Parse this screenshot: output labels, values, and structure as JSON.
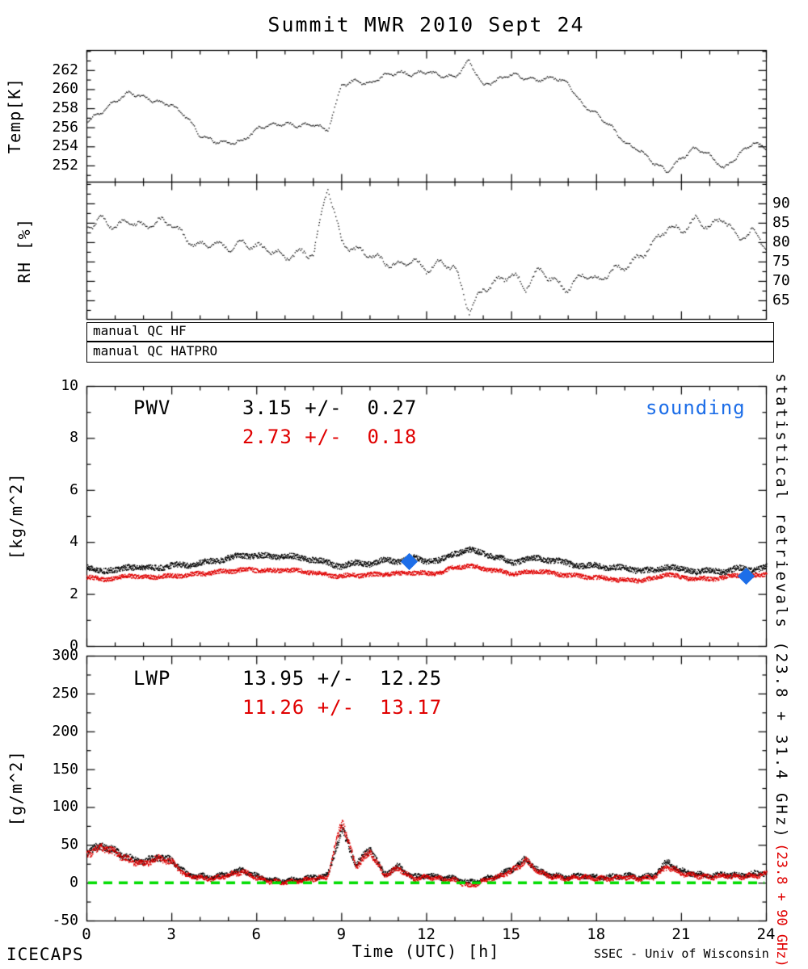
{
  "title": "Summit MWR 2010 Sept 24",
  "colors": {
    "black": "#000000",
    "red": "#e00000",
    "blue": "#1d6ee8",
    "green": "#00dd00"
  },
  "qc": {
    "rows": [
      {
        "label": "manual QC HF"
      },
      {
        "label": "manual QC HATPRO"
      }
    ]
  },
  "x_axis": {
    "label": "Time (UTC) [h]",
    "ticks": [
      "0",
      "3",
      "6",
      "9",
      "12",
      "15",
      "18",
      "21",
      "24"
    ]
  },
  "footer": {
    "left": "ICECAPS",
    "right": "SSEC - Univ of Wisconsin"
  },
  "right_label": {
    "black": "statistical retrievals (23.8 + 31.4 GHz)",
    "red": "(23.8 + 90 GHz)"
  },
  "panels": {
    "temp": {
      "ylabel": "Temp[K]",
      "yticks": [
        "262",
        "260",
        "258",
        "256",
        "254",
        "252"
      ]
    },
    "rh": {
      "ylabel": "RH [%]",
      "yticks": [
        "90",
        "85",
        "80",
        "75",
        "70",
        "65"
      ]
    },
    "pwv": {
      "ylabel": "[kg/m^2]",
      "yticks": [
        "10",
        "8",
        "6",
        "4",
        "2",
        "0"
      ],
      "label": "PWV",
      "stats_black": "3.15 +/-  0.27",
      "stats_red": "2.73 +/-  0.18",
      "legend_sounding": "sounding"
    },
    "lwp": {
      "ylabel": "[g/m^2]",
      "yticks": [
        "300",
        "250",
        "200",
        "150",
        "100",
        "50",
        "0",
        "-50"
      ],
      "label": "LWP",
      "stats_black": "13.95 +/-  12.25",
      "stats_red": "11.26 +/-  13.17"
    }
  },
  "chart_data": [
    {
      "type": "line",
      "panel": "temp",
      "title": "Summit MWR 2010 Sept 24",
      "ylabel": "Temp[K]",
      "ylim": [
        250.3,
        264.1
      ],
      "yticks": [
        252,
        254,
        256,
        258,
        260,
        262
      ],
      "xlim": [
        0,
        24
      ],
      "xticks": [
        0,
        3,
        6,
        9,
        12,
        15,
        18,
        21,
        24
      ],
      "x_start": 0,
      "x_step": 0.5,
      "x_unit": "hours UTC",
      "style": "dotted-black",
      "values": [
        256.7,
        257.6,
        258.8,
        259.7,
        259.2,
        258.7,
        258.4,
        257.2,
        255.2,
        254.6,
        254.4,
        254.6,
        255.9,
        256.3,
        256.4,
        256.2,
        256.4,
        255.7,
        260.5,
        260.9,
        260.6,
        261.5,
        261.8,
        261.6,
        261.9,
        261.5,
        261.3,
        263.0,
        260.4,
        261.0,
        261.6,
        261.2,
        261.0,
        261.3,
        260.6,
        258.4,
        257.4,
        256.2,
        254.4,
        253.7,
        252.4,
        251.4,
        252.8,
        253.9,
        253.1,
        251.7,
        253.1,
        254.4,
        253.9
      ]
    },
    {
      "type": "line",
      "panel": "rh",
      "ylabel": "RH [%]",
      "ylim": [
        60.2,
        95.6
      ],
      "yticks": [
        65,
        70,
        75,
        80,
        85,
        90
      ],
      "yticks_side": "right",
      "xlim": [
        0,
        24
      ],
      "x_start": 0,
      "x_step": 0.5,
      "x_unit": "hours UTC",
      "style": "dotted-black",
      "values": [
        84,
        86,
        84,
        85.5,
        84,
        85.5,
        85,
        81,
        79,
        80,
        78.5,
        80,
        79,
        78,
        76,
        77.5,
        77,
        95,
        80,
        78,
        77,
        75,
        74,
        75.5,
        73,
        75,
        73.5,
        62.5,
        68,
        70,
        72,
        68.5,
        73,
        70,
        68,
        72,
        70,
        72.5,
        74,
        76,
        80,
        84,
        83,
        86,
        84,
        86.5,
        81,
        83,
        79
      ]
    },
    {
      "type": "line",
      "panel": "pwv",
      "ylabel": "[kg/m^2]",
      "ylim": [
        0,
        10
      ],
      "yticks": [
        0,
        2,
        4,
        6,
        8,
        10
      ],
      "xlim": [
        0,
        24
      ],
      "x_start": 0,
      "x_step": 0.5,
      "x_unit": "hours UTC",
      "stats": {
        "black": {
          "mean": 3.15,
          "std": 0.27
        },
        "red": {
          "mean": 2.73,
          "std": 0.18
        }
      },
      "series": [
        {
          "name": "PWV statistical retrieval (23.8 + 31.4 GHz)",
          "color": "#000000",
          "values": [
            3.0,
            2.95,
            2.9,
            3.1,
            3.0,
            3.05,
            3.1,
            3.15,
            3.2,
            3.3,
            3.4,
            3.5,
            3.5,
            3.45,
            3.5,
            3.4,
            3.35,
            3.2,
            3.1,
            3.2,
            3.2,
            3.3,
            3.3,
            3.4,
            3.3,
            3.3,
            3.6,
            3.7,
            3.6,
            3.4,
            3.25,
            3.35,
            3.4,
            3.3,
            3.2,
            3.1,
            3.1,
            3.05,
            3.0,
            2.95,
            2.9,
            3.1,
            2.95,
            2.9,
            2.9,
            2.9,
            3.0,
            2.95,
            3.05
          ]
        },
        {
          "name": "PWV statistical retrieval (23.8 + 90 GHz)",
          "color": "#e00000",
          "values": [
            2.65,
            2.6,
            2.6,
            2.75,
            2.65,
            2.7,
            2.7,
            2.75,
            2.8,
            2.85,
            2.9,
            2.95,
            2.95,
            2.9,
            2.95,
            2.9,
            2.85,
            2.75,
            2.7,
            2.75,
            2.75,
            2.8,
            2.8,
            2.85,
            2.8,
            2.85,
            3.05,
            3.1,
            3.0,
            2.9,
            2.8,
            2.85,
            2.9,
            2.8,
            2.75,
            2.7,
            2.65,
            2.6,
            2.55,
            2.55,
            2.6,
            2.8,
            2.65,
            2.6,
            2.6,
            2.65,
            2.75,
            2.7,
            2.8
          ]
        }
      ],
      "markers": {
        "name": "sounding",
        "shape": "diamond",
        "color": "#1d6ee8",
        "points": [
          [
            11.4,
            3.25
          ],
          [
            23.3,
            2.7
          ]
        ]
      }
    },
    {
      "type": "line",
      "panel": "lwp",
      "ylabel": "[g/m^2]",
      "ylim": [
        -50,
        300
      ],
      "yticks": [
        -50,
        0,
        50,
        100,
        150,
        200,
        250,
        300
      ],
      "xlabel": "Time (UTC) [h]",
      "xlim": [
        0,
        24
      ],
      "xticks": [
        0,
        3,
        6,
        9,
        12,
        15,
        18,
        21,
        24
      ],
      "x_start": 0,
      "x_step": 0.5,
      "x_unit": "hours UTC",
      "stats": {
        "black": {
          "mean": 13.95,
          "std": 12.25
        },
        "red": {
          "mean": 11.26,
          "std": 13.17
        }
      },
      "zero_line": {
        "value": 0,
        "color": "#00dd00",
        "style": "dashed"
      },
      "series": [
        {
          "name": "LWP statistical retrieval (23.8 + 31.4 GHz)",
          "color": "#000000",
          "values": [
            40,
            50,
            42,
            33,
            28,
            35,
            30,
            12,
            9,
            8,
            13,
            17,
            9,
            4,
            3,
            5,
            8,
            10,
            72,
            25,
            45,
            12,
            22,
            8,
            10,
            8,
            6,
            1,
            5,
            10,
            18,
            32,
            15,
            10,
            8,
            10,
            8,
            8,
            10,
            8,
            10,
            28,
            16,
            12,
            10,
            12,
            10,
            12,
            14
          ]
        },
        {
          "name": "LWP statistical retrieval (23.8 + 90 GHz)",
          "color": "#e00000",
          "values": [
            38,
            48,
            40,
            30,
            25,
            33,
            28,
            10,
            7,
            6,
            11,
            15,
            7,
            2,
            1,
            3,
            6,
            8,
            83,
            22,
            42,
            10,
            20,
            6,
            8,
            6,
            4,
            -4,
            3,
            8,
            16,
            30,
            13,
            8,
            6,
            8,
            6,
            6,
            8,
            6,
            8,
            22,
            13,
            10,
            8,
            10,
            8,
            10,
            12
          ]
        }
      ]
    }
  ]
}
